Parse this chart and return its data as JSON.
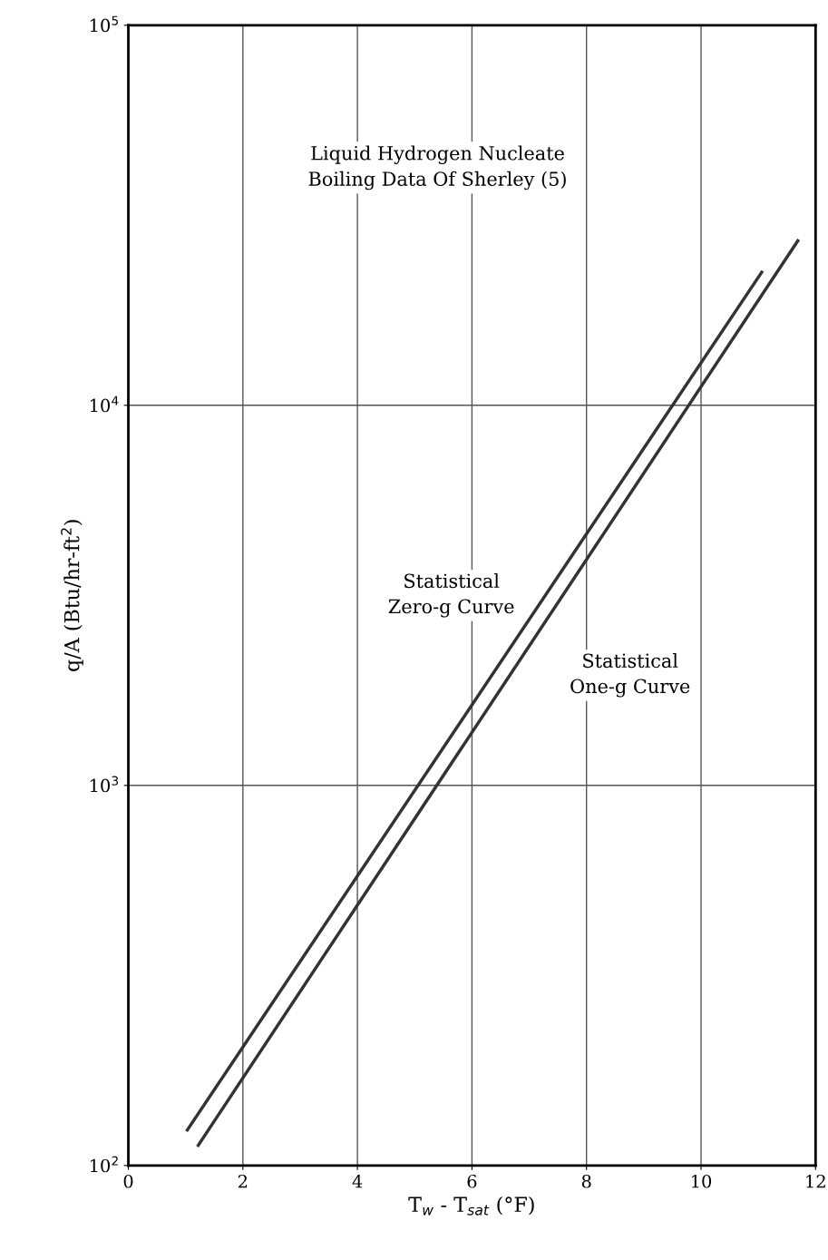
{
  "chart_data": {
    "type": "line",
    "xlabel": "T$_{w}$ - T$_{sat}$ (°F)",
    "ylabel": "q/A (Btu/hr-ft$^{2}$)",
    "annotations": [
      "Liquid Hydrogen Nucleate\nBoiling Data Of Sherley (5)"
    ],
    "series": [
      {
        "name": "Statistical\nZero-g Curve",
        "color": "#333333",
        "x": [
          1.03,
          11.06
        ],
        "values": [
          124,
          22400
        ]
      },
      {
        "name": "Statistical\nOne-g Curve",
        "color": "#333333",
        "x": [
          1.22,
          11.69
        ],
        "values": [
          113,
          27100
        ]
      }
    ],
    "log": "y",
    "xlim": [
      0,
      12
    ],
    "xticks": [
      0,
      2,
      4,
      6,
      8,
      10,
      12
    ],
    "ylim": [
      100,
      100000
    ],
    "yticks": [
      {
        "value": 100,
        "label": "10$^{2}$"
      },
      {
        "value": 1000,
        "label": "10$^{3}$"
      },
      {
        "value": 10000,
        "label": "10$^{4}$"
      },
      {
        "value": 100000,
        "label": "10$^{5}$"
      }
    ],
    "grid": true,
    "line_style": "solid",
    "marker": "none"
  }
}
